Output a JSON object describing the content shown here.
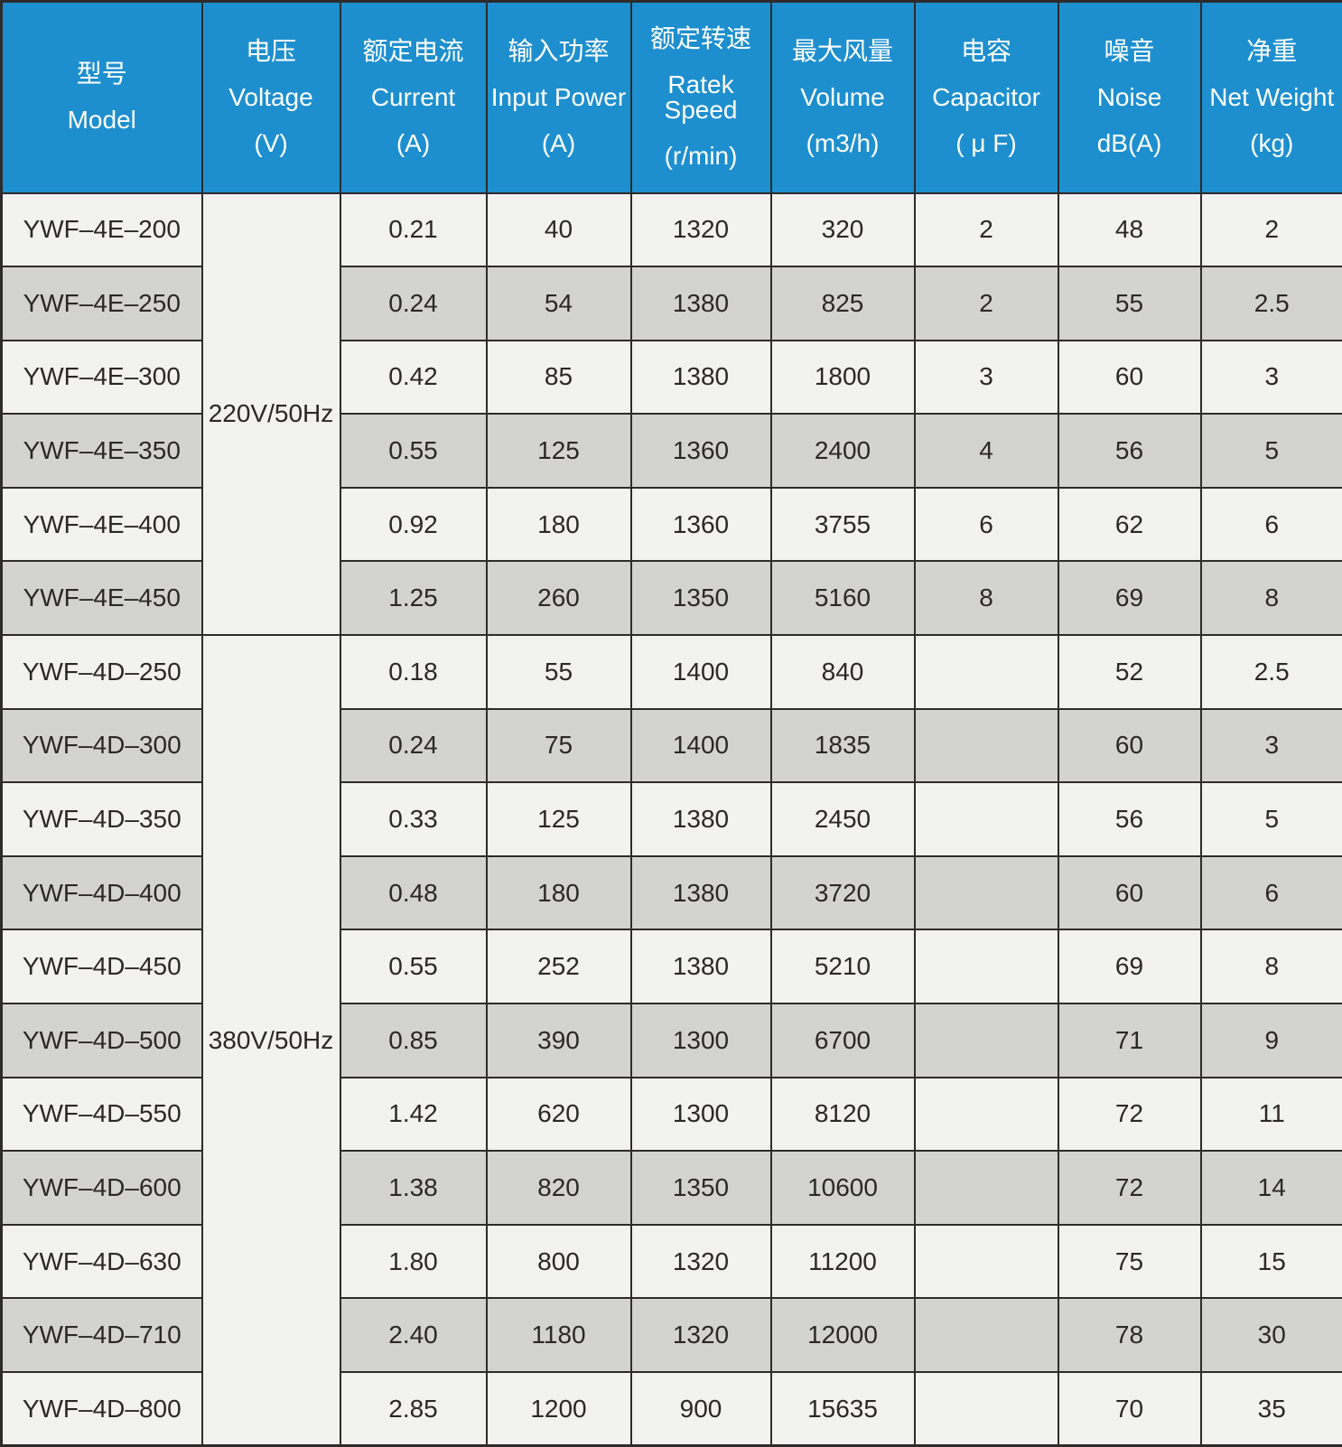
{
  "chart_data": {
    "type": "table",
    "columns": [
      {
        "key": "model",
        "zh": "型号",
        "en": "Model",
        "unit": ""
      },
      {
        "key": "voltage",
        "zh": "电压",
        "en": "Voltage",
        "unit": "(V)"
      },
      {
        "key": "current",
        "zh": "额定电流",
        "en": "Current",
        "unit": "(A)"
      },
      {
        "key": "power",
        "zh": "输入功率",
        "en": "Input Power",
        "unit": "(A)"
      },
      {
        "key": "speed",
        "zh": "额定转速",
        "en": "Ratek Speed",
        "unit": "(r/min)"
      },
      {
        "key": "volume",
        "zh": "最大风量",
        "en": "Volume",
        "unit": "(m3/h)"
      },
      {
        "key": "capacitor",
        "zh": "电容",
        "en": "Capacitor",
        "unit": "( μ F)"
      },
      {
        "key": "noise",
        "zh": "噪音",
        "en": "Noise",
        "unit": "dB(A)"
      },
      {
        "key": "weight",
        "zh": "净重",
        "en": "Net Weight",
        "unit": "(kg)"
      }
    ],
    "sections": [
      {
        "voltage": "220V/50Hz",
        "rows": [
          {
            "model": "YWF–4E–200",
            "current": "0.21",
            "power": "40",
            "speed": "1320",
            "volume": "320",
            "capacitor": "2",
            "noise": "48",
            "weight": "2"
          },
          {
            "model": "YWF–4E–250",
            "current": "0.24",
            "power": "54",
            "speed": "1380",
            "volume": "825",
            "capacitor": "2",
            "noise": "55",
            "weight": "2.5"
          },
          {
            "model": "YWF–4E–300",
            "current": "0.42",
            "power": "85",
            "speed": "1380",
            "volume": "1800",
            "capacitor": "3",
            "noise": "60",
            "weight": "3"
          },
          {
            "model": "YWF–4E–350",
            "current": "0.55",
            "power": "125",
            "speed": "1360",
            "volume": "2400",
            "capacitor": "4",
            "noise": "56",
            "weight": "5"
          },
          {
            "model": "YWF–4E–400",
            "current": "0.92",
            "power": "180",
            "speed": "1360",
            "volume": "3755",
            "capacitor": "6",
            "noise": "62",
            "weight": "6"
          },
          {
            "model": "YWF–4E–450",
            "current": "1.25",
            "power": "260",
            "speed": "1350",
            "volume": "5160",
            "capacitor": "8",
            "noise": "69",
            "weight": "8"
          }
        ]
      },
      {
        "voltage": "380V/50Hz",
        "rows": [
          {
            "model": "YWF–4D–250",
            "current": "0.18",
            "power": "55",
            "speed": "1400",
            "volume": "840",
            "capacitor": "",
            "noise": "52",
            "weight": "2.5"
          },
          {
            "model": "YWF–4D–300",
            "current": "0.24",
            "power": "75",
            "speed": "1400",
            "volume": "1835",
            "capacitor": "",
            "noise": "60",
            "weight": "3"
          },
          {
            "model": "YWF–4D–350",
            "current": "0.33",
            "power": "125",
            "speed": "1380",
            "volume": "2450",
            "capacitor": "",
            "noise": "56",
            "weight": "5"
          },
          {
            "model": "YWF–4D–400",
            "current": "0.48",
            "power": "180",
            "speed": "1380",
            "volume": "3720",
            "capacitor": "",
            "noise": "60",
            "weight": "6"
          },
          {
            "model": "YWF–4D–450",
            "current": "0.55",
            "power": "252",
            "speed": "1380",
            "volume": "5210",
            "capacitor": "",
            "noise": "69",
            "weight": "8"
          },
          {
            "model": "YWF–4D–500",
            "current": "0.85",
            "power": "390",
            "speed": "1300",
            "volume": "6700",
            "capacitor": "",
            "noise": "71",
            "weight": "9"
          },
          {
            "model": "YWF–4D–550",
            "current": "1.42",
            "power": "620",
            "speed": "1300",
            "volume": "8120",
            "capacitor": "",
            "noise": "72",
            "weight": "11"
          },
          {
            "model": "YWF–4D–600",
            "current": "1.38",
            "power": "820",
            "speed": "1350",
            "volume": "10600",
            "capacitor": "",
            "noise": "72",
            "weight": "14"
          },
          {
            "model": "YWF–4D–630",
            "current": "1.80",
            "power": "800",
            "speed": "1320",
            "volume": "11200",
            "capacitor": "",
            "noise": "75",
            "weight": "15"
          },
          {
            "model": "YWF–4D–710",
            "current": "2.40",
            "power": "1180",
            "speed": "1320",
            "volume": "12000",
            "capacitor": "",
            "noise": "78",
            "weight": "30"
          },
          {
            "model": "YWF–4D–800",
            "current": "2.85",
            "power": "1200",
            "speed": "900",
            "volume": "15635",
            "capacitor": "",
            "noise": "70",
            "weight": "35"
          }
        ]
      }
    ]
  },
  "colors": {
    "header_bg": "#1e8fce",
    "header_text": "#ffffff",
    "row_light": "#f2f2f0",
    "row_dark": "#d3d3d1",
    "grid": "#2d2b2b",
    "text": "#2b2827"
  }
}
